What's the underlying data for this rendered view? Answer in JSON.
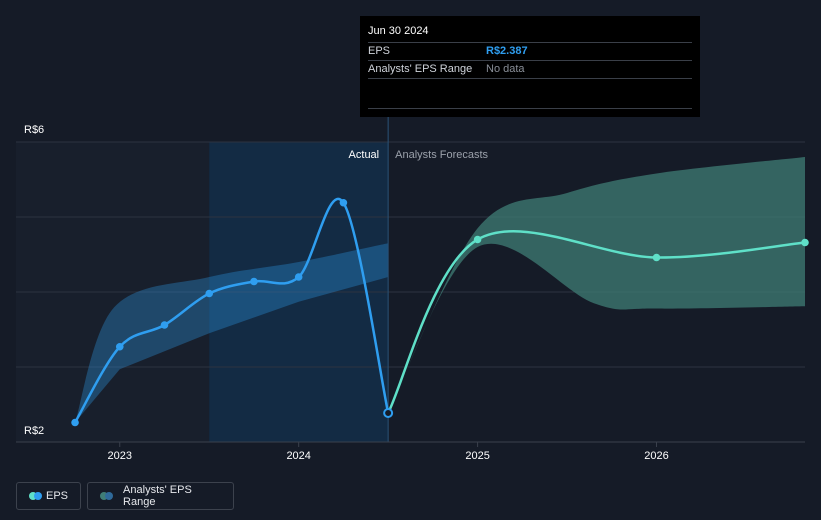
{
  "chart_data": {
    "type": "line",
    "x_axis": {
      "ticks": [
        {
          "label": "2023",
          "x": 2023.0
        },
        {
          "label": "2024",
          "x": 2024.0
        },
        {
          "label": "2025",
          "x": 2025.0
        },
        {
          "label": "2026",
          "x": 2026.0
        }
      ],
      "range": [
        2022.42,
        2026.83
      ]
    },
    "y_axis": {
      "ticks": [
        {
          "label": "R$2",
          "value": 2
        },
        {
          "label": "R$6",
          "value": 6
        }
      ],
      "range": [
        2,
        6
      ],
      "gridlines": [
        2,
        3,
        4,
        5,
        6
      ]
    },
    "divider_x": 2024.5,
    "highlight_range": [
      2023.5,
      2024.5
    ],
    "labels": {
      "actual": "Actual",
      "forecast": "Analysts Forecasts"
    },
    "series": [
      {
        "name": "EPS",
        "color": "#2f9ef0",
        "points": [
          {
            "x": 2022.75,
            "y": 2.26,
            "marker": true
          },
          {
            "x": 2023.0,
            "y": 3.27,
            "marker": true
          },
          {
            "x": 2023.25,
            "y": 3.56,
            "marker": true
          },
          {
            "x": 2023.5,
            "y": 3.98,
            "marker": true
          },
          {
            "x": 2023.75,
            "y": 4.14,
            "marker": true
          },
          {
            "x": 2024.0,
            "y": 4.2,
            "marker": true
          },
          {
            "x": 2024.25,
            "y": 5.19,
            "marker": true
          },
          {
            "x": 2024.5,
            "y": 2.387,
            "marker": true
          }
        ]
      },
      {
        "name": "EPS Forecast",
        "color": "#5fe0c8",
        "points": [
          {
            "x": 2024.5,
            "y": 2.387,
            "marker": false
          },
          {
            "x": 2025.0,
            "y": 4.7,
            "marker": true
          },
          {
            "x": 2026.0,
            "y": 4.46,
            "marker": true
          },
          {
            "x": 2026.98,
            "y": 4.66,
            "marker": true
          }
        ]
      }
    ],
    "past_range_band": {
      "color": "#2f9ef0",
      "upper": [
        {
          "x": 2022.75,
          "y": 2.26
        },
        {
          "x": 2022.97,
          "y": 3.8
        },
        {
          "x": 2023.5,
          "y": 4.2
        },
        {
          "x": 2024.0,
          "y": 4.4
        },
        {
          "x": 2024.5,
          "y": 4.65
        }
      ],
      "lower": [
        {
          "x": 2024.5,
          "y": 4.2
        },
        {
          "x": 2024.0,
          "y": 3.87
        },
        {
          "x": 2023.5,
          "y": 3.45
        },
        {
          "x": 2023.0,
          "y": 2.97
        },
        {
          "x": 2022.75,
          "y": 2.26
        }
      ]
    },
    "forecast_range_band": {
      "color": "#3f7d76",
      "upper": [
        {
          "x": 2024.5,
          "y": 2.387
        },
        {
          "x": 2025.0,
          "y": 4.85
        },
        {
          "x": 2025.5,
          "y": 5.32
        },
        {
          "x": 2026.0,
          "y": 5.58
        },
        {
          "x": 2026.98,
          "y": 5.8
        }
      ],
      "lower": [
        {
          "x": 2026.98,
          "y": 3.81
        },
        {
          "x": 2026.0,
          "y": 3.78
        },
        {
          "x": 2025.65,
          "y": 3.85
        },
        {
          "x": 2025.0,
          "y": 4.6
        },
        {
          "x": 2024.5,
          "y": 2.387
        }
      ]
    }
  },
  "tooltip": {
    "date": "Jun 30 2024",
    "eps_label": "EPS",
    "eps_value": "R$2.387",
    "range_label": "Analysts' EPS Range",
    "range_value": "No data"
  },
  "legend": {
    "eps": {
      "label": "EPS",
      "colors": [
        "#5fe0c8",
        "#2f9ef0"
      ]
    },
    "range": {
      "label": "Analysts' EPS Range",
      "colors": [
        "#3f7d76",
        "#2f6a9a"
      ]
    }
  }
}
